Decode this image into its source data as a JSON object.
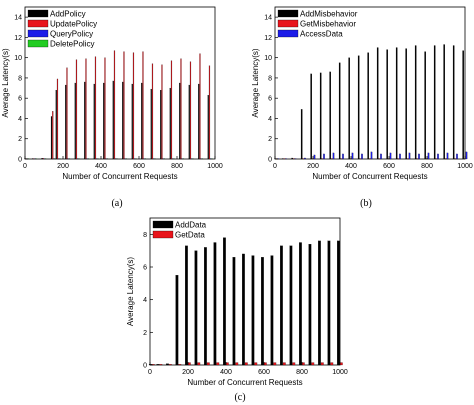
{
  "chart_data": [
    {
      "type": "bar",
      "panel_label": "(a)",
      "xlabel": "Number of Concurrent Requests",
      "ylabel": "Average Latency(s)",
      "xlim": [
        0,
        1000
      ],
      "ylim": [
        0,
        15
      ],
      "xticks": [
        0,
        200,
        400,
        600,
        800,
        1000
      ],
      "yticks": [
        0,
        2,
        4,
        6,
        8,
        10,
        12,
        14
      ],
      "legend_position": "top-left",
      "x": [
        10,
        50,
        100,
        150,
        175,
        225,
        275,
        325,
        375,
        425,
        475,
        525,
        575,
        625,
        675,
        725,
        775,
        825,
        875,
        925,
        975
      ],
      "series": [
        {
          "name": "AddPolicy",
          "color": "#000000",
          "values": [
            0.05,
            0.05,
            0.08,
            4.2,
            6.8,
            7.3,
            7.5,
            7.6,
            7.4,
            7.5,
            7.7,
            7.6,
            7.4,
            7.5,
            6.9,
            6.8,
            7.0,
            7.5,
            7.3,
            7.4,
            6.3
          ]
        },
        {
          "name": "UpdatePolicy",
          "color": "#e8141b",
          "values": [
            0.05,
            0.05,
            0.08,
            4.7,
            7.9,
            9.0,
            9.8,
            9.9,
            10.1,
            10.0,
            10.7,
            10.6,
            10.5,
            10.6,
            9.4,
            9.3,
            9.7,
            9.9,
            9.6,
            10.4,
            9.2
          ]
        },
        {
          "name": "QueryPolicy",
          "color": "#1c1ce8",
          "values": [
            0.05,
            0.05,
            0.05,
            0.05,
            0.05,
            0.05,
            0.05,
            0.05,
            0.05,
            0.05,
            0.05,
            0.05,
            0.05,
            0.05,
            0.05,
            0.05,
            0.05,
            0.05,
            0.05,
            0.05,
            0.05
          ]
        },
        {
          "name": "DeletePolicy",
          "color": "#22cc22",
          "values": [
            0.05,
            0.05,
            0.05,
            0.05,
            0.05,
            0.05,
            0.05,
            0.05,
            0.05,
            0.05,
            0.05,
            0.05,
            0.05,
            0.05,
            0.05,
            0.05,
            0.05,
            0.05,
            0.05,
            0.05,
            0.05
          ]
        }
      ]
    },
    {
      "type": "bar",
      "panel_label": "(b)",
      "xlabel": "Number of Concurrent Requests",
      "ylabel": "Average Latency(s)",
      "xlim": [
        0,
        1000
      ],
      "ylim": [
        0,
        15
      ],
      "xticks": [
        0,
        200,
        400,
        600,
        800,
        1000
      ],
      "yticks": [
        0,
        2,
        4,
        6,
        8,
        10,
        12,
        14
      ],
      "legend_position": "top-left",
      "x": [
        10,
        50,
        100,
        150,
        200,
        250,
        300,
        350,
        400,
        450,
        500,
        550,
        600,
        650,
        700,
        750,
        800,
        850,
        900,
        950,
        1000
      ],
      "series": [
        {
          "name": "AddMisbehavior",
          "color": "#000000",
          "values": [
            0.05,
            0.05,
            0.1,
            4.9,
            8.4,
            8.5,
            8.6,
            9.5,
            10.0,
            10.2,
            10.5,
            11.0,
            10.8,
            11.0,
            10.9,
            11.2,
            10.6,
            11.2,
            11.3,
            11.2,
            10.7
          ]
        },
        {
          "name": "GetMisbehavior",
          "color": "#e8141b",
          "values": [
            0.05,
            0.05,
            0.05,
            0.05,
            0.05,
            0.05,
            0.05,
            0.05,
            0.05,
            0.05,
            0.05,
            0.05,
            0.05,
            0.05,
            0.05,
            0.05,
            0.05,
            0.05,
            0.05,
            0.05,
            0.05
          ]
        },
        {
          "name": "AccessData",
          "color": "#1c1ce8",
          "values": [
            0.05,
            0.05,
            0.05,
            0.1,
            0.4,
            0.5,
            0.6,
            0.5,
            0.6,
            0.5,
            0.7,
            0.5,
            0.6,
            0.5,
            0.6,
            0.5,
            0.6,
            0.5,
            0.6,
            0.5,
            0.7
          ]
        }
      ]
    },
    {
      "type": "bar",
      "panel_label": "(c)",
      "xlabel": "Number of Concurrent Requests",
      "ylabel": "Average Latency(s)",
      "xlim": [
        0,
        1000
      ],
      "ylim": [
        0,
        9
      ],
      "xticks": [
        0,
        200,
        400,
        600,
        800,
        1000
      ],
      "yticks": [
        0,
        2,
        4,
        6,
        8
      ],
      "legend_position": "top-left",
      "x": [
        10,
        50,
        100,
        150,
        200,
        250,
        300,
        350,
        400,
        450,
        500,
        550,
        600,
        650,
        700,
        750,
        800,
        850,
        900,
        950,
        1000
      ],
      "series": [
        {
          "name": "AddData",
          "color": "#000000",
          "values": [
            0.05,
            0.05,
            0.08,
            5.5,
            7.3,
            7.0,
            7.2,
            7.5,
            7.8,
            6.6,
            6.8,
            6.7,
            6.6,
            6.7,
            7.3,
            7.3,
            7.5,
            7.4,
            7.6,
            7.6,
            7.6
          ]
        },
        {
          "name": "GetData",
          "color": "#e8141b",
          "values": [
            0.05,
            0.05,
            0.05,
            0.05,
            0.15,
            0.15,
            0.15,
            0.15,
            0.15,
            0.15,
            0.15,
            0.15,
            0.15,
            0.15,
            0.15,
            0.15,
            0.15,
            0.15,
            0.15,
            0.15,
            0.15
          ]
        }
      ]
    }
  ]
}
